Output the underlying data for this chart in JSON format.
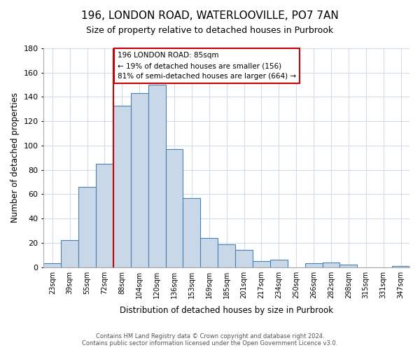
{
  "title": "196, LONDON ROAD, WATERLOOVILLE, PO7 7AN",
  "subtitle": "Size of property relative to detached houses in Purbrook",
  "xlabel": "Distribution of detached houses by size in Purbrook",
  "ylabel": "Number of detached properties",
  "bar_labels": [
    "23sqm",
    "39sqm",
    "55sqm",
    "72sqm",
    "88sqm",
    "104sqm",
    "120sqm",
    "136sqm",
    "153sqm",
    "169sqm",
    "185sqm",
    "201sqm",
    "217sqm",
    "234sqm",
    "250sqm",
    "266sqm",
    "282sqm",
    "298sqm",
    "315sqm",
    "331sqm",
    "347sqm"
  ],
  "bar_heights": [
    3,
    22,
    66,
    85,
    133,
    143,
    150,
    97,
    57,
    24,
    19,
    14,
    5,
    6,
    0,
    3,
    4,
    2,
    0,
    0,
    1
  ],
  "bar_color": "#c8d8e8",
  "bar_edge_color": "#4a7fb5",
  "vline_index": 4,
  "vline_color": "#cc0000",
  "annotation_line1": "196 LONDON ROAD: 85sqm",
  "annotation_line2": "← 19% of detached houses are smaller (156)",
  "annotation_line3": "81% of semi-detached houses are larger (664) →",
  "annotation_box_edge": "#cc0000",
  "ylim": [
    0,
    180
  ],
  "yticks": [
    0,
    20,
    40,
    60,
    80,
    100,
    120,
    140,
    160,
    180
  ],
  "footer_line1": "Contains HM Land Registry data © Crown copyright and database right 2024.",
  "footer_line2": "Contains public sector information licensed under the Open Government Licence v3.0.",
  "bg_color": "#ffffff",
  "grid_color": "#d0dce8"
}
